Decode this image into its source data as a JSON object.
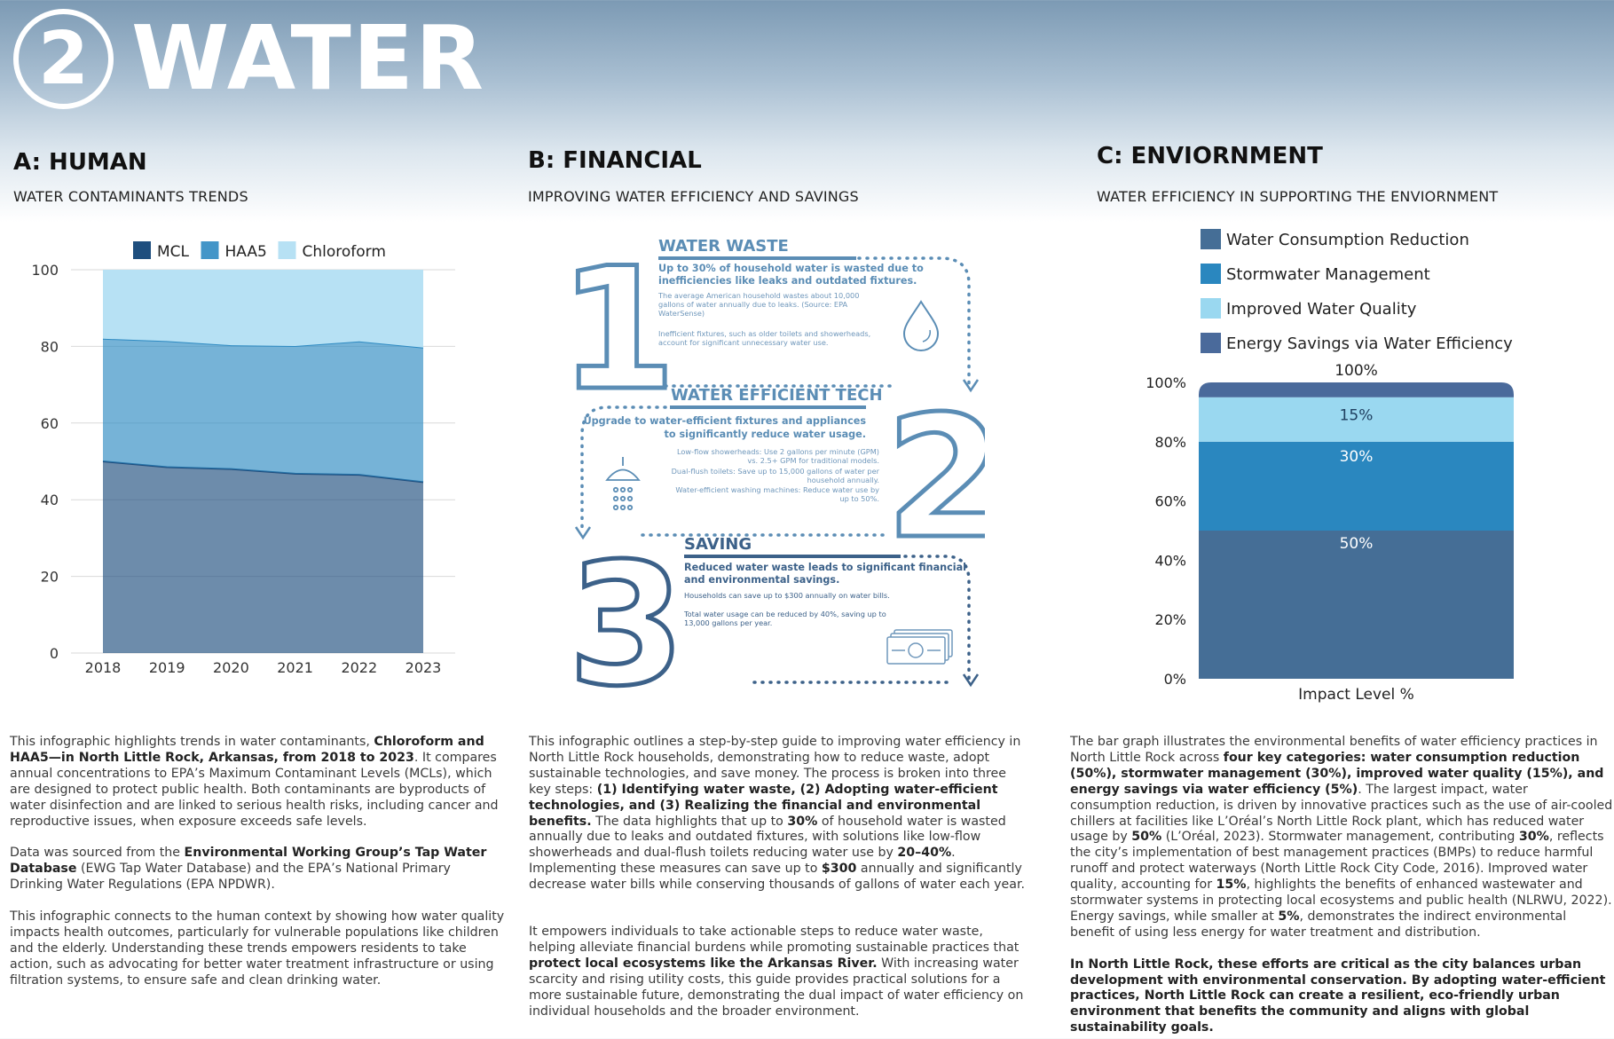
{
  "header": {
    "number": "2",
    "title": "WATER"
  },
  "colors": {
    "mcl": "#1e4e7e",
    "haa5": "#2d8ac2",
    "chloroform": "#b7e1f4",
    "energy": "#4a6a9b",
    "title_blue": "#5b8db5"
  },
  "sections": {
    "human": {
      "heading": "A: HUMAN",
      "subheading": "WATER CONTAMINANTS TRENDS"
    },
    "financial": {
      "heading": "B: FINANCIAL",
      "subheading": "IMPROVING WATER EFFICIENCY AND SAVINGS"
    },
    "environment": {
      "heading": "C: ENVIORNMENT",
      "subheading": "WATER EFFICIENCY IN SUPPORTING THE ENVIORNMENT"
    }
  },
  "chart_data": [
    {
      "type": "area",
      "stacked": true,
      "x": [
        "2018",
        "2019",
        "2020",
        "2021",
        "2022",
        "2023"
      ],
      "series": [
        {
          "name": "MCL",
          "values": [
            50,
            48.5,
            48,
            46.8,
            46.5,
            44.6
          ]
        },
        {
          "name": "HAA5",
          "values": [
            32,
            32.9,
            32.3,
            33.3,
            34.8,
            35.1
          ]
        },
        {
          "name": "Chloroform",
          "values": [
            18,
            18.6,
            19.7,
            19.9,
            18.7,
            20.3
          ]
        }
      ],
      "legend": [
        "MCL",
        "HAA5",
        "Chloroform"
      ],
      "legend_position": "top",
      "ylim": [
        0,
        100
      ],
      "yticks": [
        "0",
        "20",
        "40",
        "60",
        "80",
        "100"
      ],
      "title": "",
      "xlabel": "",
      "ylabel": ""
    },
    {
      "type": "bar",
      "stacked": true,
      "categories": [
        "Impact Level %"
      ],
      "series": [
        {
          "name": "Water Consumption Reduction",
          "values": [
            50
          ],
          "label": "50%"
        },
        {
          "name": "Stormwater Management",
          "values": [
            30
          ],
          "label": "30%"
        },
        {
          "name": "Improved Water Quality",
          "values": [
            15
          ],
          "label": "15%"
        },
        {
          "name": "Energy Savings via Water Efficiency",
          "values": [
            5
          ],
          "label": ""
        }
      ],
      "total_label": "100%",
      "yticks": [
        "0%",
        "20%",
        "40%",
        "60%",
        "80%",
        "100%"
      ],
      "ylim": [
        0,
        100
      ],
      "xlabel": "Impact Level %",
      "legend_position": "top"
    }
  ],
  "financial_graphic": {
    "step1": {
      "numeral": "1",
      "title": "WATER WASTE",
      "bold": [
        "Up to 30% of household water is wasted due to",
        "inefficiencies like leaks and outdated fixtures."
      ],
      "small1": [
        "The average American household wastes about 10,000",
        "gallons of water annually due to leaks. (Source: EPA",
        "WaterSense)"
      ],
      "small2": [
        "Inefficient fixtures, such as older toilets and showerheads,",
        "account for significant unnecessary water use."
      ]
    },
    "step2": {
      "numeral": "2",
      "title": "WATER EFFICIENT TECH",
      "bold": [
        "Upgrade to water-efficient fixtures and appliances",
        "to significantly reduce water usage."
      ],
      "small": [
        "Low-flow showerheads: Use 2 gallons per minute (GPM)",
        "vs. 2.5+ GPM for traditional models.",
        "Dual-flush toilets: Save up to 15,000 gallons of water per",
        "household annually.",
        "Water-efficient washing machines: Reduce water use by",
        "up to 50%."
      ]
    },
    "step3": {
      "numeral": "3",
      "title": "SAVING",
      "bold": [
        "Reduced water waste leads to significant financial",
        "and environmental savings."
      ],
      "small1": [
        "Households can save up to $300 annually on water bills."
      ],
      "small2": [
        "Total water usage can be reduced by 40%, saving up to",
        "13,000 gallons per year."
      ]
    }
  },
  "text_human": {
    "p1": [
      "This infographic highlights trends in water contaminants, ",
      "Chloroform and HAA5—in North Little Rock, Arkansas, from 2018 to 2023",
      ". It compares annual concentrations to EPA’s Maximum Contaminant Levels (MCLs), which are designed to protect public health. Both contaminants are byproducts of water disinfection and are linked to serious health risks, including cancer and reproductive issues, when exposure exceeds safe levels."
    ],
    "p2": [
      "Data was sourced from the ",
      "Environmental Working Group’s Tap Water Database",
      " (EWG Tap Water Database) and the EPA’s National Primary Drinking Water Regulations (EPA NPDWR)."
    ],
    "p3": "This infographic connects to the human context by showing how water quality impacts health outcomes, particularly for vulnerable populations like children and the elderly. Understanding these trends empowers residents to take action, such as advocating for better water treatment infrastructure or using filtration systems, to ensure safe and clean drinking water."
  },
  "text_financial": {
    "p1": [
      "This infographic outlines a step-by-step guide to improving water efficiency in North Little Rock households, demonstrating how to reduce waste, adopt sustainable technologies, and save money. The process is broken into three key steps: ",
      "(1) Identifying water waste, (2) Adopting water-efficient technologies, and (3) Realizing the financial and environmental benefits.",
      " The data highlights that up to ",
      "30%",
      " of household water is wasted annually due to leaks and outdated fixtures, with solutions like low-flow showerheads and dual-flush toilets reducing water use by ",
      "20–40%",
      ". Implementing these measures can save up to ",
      "$300",
      " annually and significantly decrease water bills while conserving thousands of gallons of water each year."
    ],
    "p2": [
      "It empowers individuals to take actionable steps to reduce water waste, helping alleviate financial burdens while promoting sustainable practices that ",
      "protect local ecosystems like the Arkansas River.",
      " With increasing water scarcity and rising utility costs, this guide provides practical solutions for a more sustainable future, demonstrating the dual impact of water efficiency on individual households and the broader environment."
    ]
  },
  "text_environment": {
    "p1": [
      "The bar graph illustrates the environmental benefits of water efficiency practices in North Little Rock across ",
      "four key categories: water consumption reduction (50%), stormwater management (30%), improved water quality (15%), and energy savings via water efficiency (5%)",
      ". The largest impact, water consumption reduction, is driven by innovative practices such as the use of air-cooled chillers at facilities like L’Oréal’s North Little Rock plant, which has reduced water usage by ",
      "50%",
      " (L’Oréal, 2023). Stormwater management, contributing ",
      "30%",
      ", reflects the city’s implementation of best management practices (BMPs) to reduce harmful runoff and protect waterways (North Little Rock City Code, 2016). Improved water quality, accounting for ",
      "15%",
      ", highlights the benefits of enhanced wastewater and stormwater systems in protecting local ecosystems and public health (NLRWU, 2022). Energy savings, while smaller at ",
      "5%",
      ", demonstrates the indirect environmental benefit of using less energy for water treatment and distribution."
    ],
    "p2": "In North Little Rock, these efforts are critical as the city balances urban development with environmental conservation. By adopting water-efficient practices, North Little Rock can create a resilient, eco-friendly urban environment that benefits the community and aligns with global sustainability goals."
  }
}
